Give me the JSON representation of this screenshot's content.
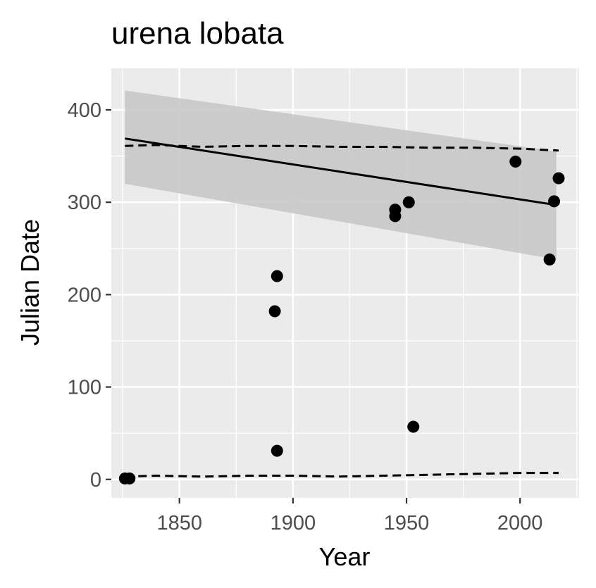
{
  "chart_data": {
    "type": "scatter",
    "title": "urena lobata",
    "xlabel": "Year",
    "ylabel": "Julian Date",
    "xlim": [
      1820,
      2026
    ],
    "ylim": [
      -20,
      445
    ],
    "xticks": [
      1850,
      1900,
      1950,
      2000
    ],
    "yticks": [
      0,
      100,
      200,
      300,
      400
    ],
    "grid": true,
    "legend": "none",
    "colors": {
      "panel": "#ebebeb",
      "grid": "#ffffff",
      "points": "#000000",
      "ribbon": "#c8c8c8",
      "tick_text": "#4d4d4d"
    },
    "points": [
      {
        "x": 1826,
        "y": 1
      },
      {
        "x": 1828,
        "y": 1
      },
      {
        "x": 1892,
        "y": 182
      },
      {
        "x": 1893,
        "y": 220
      },
      {
        "x": 1893,
        "y": 31
      },
      {
        "x": 1945,
        "y": 292
      },
      {
        "x": 1945,
        "y": 285
      },
      {
        "x": 1951,
        "y": 300
      },
      {
        "x": 1953,
        "y": 57
      },
      {
        "x": 1998,
        "y": 344
      },
      {
        "x": 2013,
        "y": 238
      },
      {
        "x": 2015,
        "y": 301
      },
      {
        "x": 2017,
        "y": 326
      }
    ],
    "trend_line": {
      "x": [
        1826,
        2016
      ],
      "y": [
        369,
        297
      ]
    },
    "confidence_band": {
      "x": [
        1826,
        2016
      ],
      "upper": [
        421,
        355
      ],
      "lower": [
        320,
        238
      ]
    },
    "upper_dashed": {
      "x": [
        1826,
        1840,
        1860,
        1880,
        1900,
        1920,
        1940,
        1960,
        1980,
        2000,
        2017
      ],
      "y": [
        361,
        362,
        360,
        361,
        361,
        360,
        360,
        359,
        359,
        358,
        356
      ]
    },
    "lower_dashed": {
      "x": [
        1826,
        1840,
        1860,
        1880,
        1900,
        1920,
        1940,
        1960,
        1980,
        2000,
        2017
      ],
      "y": [
        3,
        4,
        3,
        4,
        4,
        3,
        4,
        5,
        6,
        7,
        7
      ]
    }
  }
}
